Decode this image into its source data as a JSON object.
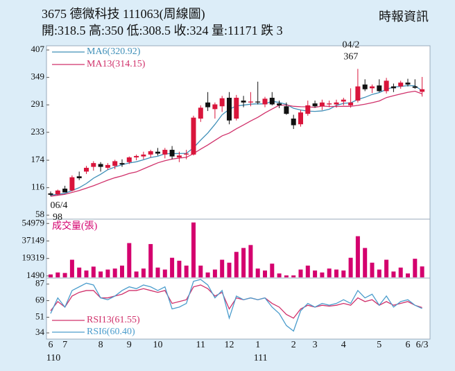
{
  "header": {
    "title": "3675  德微科技 111063(周線圖)",
    "quote": "開:318.5 高:350 低:308.5 收:324 量:11171 跌 3",
    "source": "時報資訊"
  },
  "chart_data": [
    {
      "type": "candlestick",
      "up_color": "#d9153b",
      "down_color": "#111111",
      "categories": [
        "6",
        null,
        "7",
        null,
        null,
        null,
        null,
        "8",
        null,
        null,
        null,
        "9",
        null,
        null,
        null,
        "10",
        null,
        null,
        null,
        null,
        null,
        "11",
        null,
        null,
        null,
        "12",
        null,
        null,
        null,
        "1",
        null,
        null,
        null,
        null,
        "2",
        null,
        null,
        "3",
        null,
        null,
        null,
        "4",
        null,
        null,
        null,
        null,
        "5",
        null,
        null,
        null,
        "6",
        null,
        "6/3"
      ],
      "year_categories": [
        "110",
        null,
        null,
        null,
        null,
        null,
        null,
        null,
        null,
        null,
        null,
        null,
        null,
        null,
        null,
        null,
        null,
        null,
        null,
        null,
        null,
        null,
        null,
        null,
        null,
        null,
        null,
        null,
        null,
        "111",
        null,
        null,
        null,
        null,
        null,
        null,
        null,
        null,
        null,
        null,
        null,
        null,
        null,
        null,
        null,
        null,
        null,
        null,
        null,
        null,
        null,
        null,
        null
      ],
      "open": [
        104,
        102,
        114,
        110,
        140,
        150,
        160,
        166,
        158,
        162,
        168,
        170,
        180,
        182,
        186,
        192,
        186,
        196,
        180,
        186,
        186,
        262,
        296,
        282,
        288,
        306,
        262,
        300,
        296,
        298,
        292,
        306,
        294,
        288,
        262,
        250,
        272,
        294,
        288,
        292,
        292,
        298,
        290,
        300,
        334,
        326,
        332,
        320,
        330,
        330,
        338,
        330,
        318.5
      ],
      "high": [
        108,
        112,
        120,
        142,
        150,
        162,
        172,
        170,
        168,
        175,
        176,
        182,
        186,
        192,
        196,
        200,
        200,
        204,
        192,
        196,
        268,
        290,
        318,
        296,
        310,
        318,
        312,
        310,
        318,
        340,
        308,
        318,
        300,
        296,
        270,
        280,
        300,
        300,
        302,
        300,
        302,
        306,
        326,
        367,
        345,
        334,
        345,
        348,
        336,
        342,
        346,
        345,
        350
      ],
      "low": [
        98,
        100,
        108,
        108,
        132,
        145,
        152,
        150,
        154,
        155,
        160,
        166,
        174,
        176,
        180,
        184,
        178,
        176,
        170,
        176,
        184,
        255,
        278,
        262,
        276,
        250,
        258,
        286,
        288,
        292,
        286,
        290,
        284,
        270,
        240,
        245,
        268,
        285,
        280,
        286,
        285,
        290,
        285,
        296,
        320,
        316,
        318,
        315,
        318,
        325,
        330,
        325,
        308.5
      ],
      "close": [
        101,
        110,
        106,
        138,
        136,
        158,
        168,
        160,
        164,
        172,
        165,
        180,
        183,
        186,
        193,
        188,
        196,
        182,
        184,
        188,
        264,
        285,
        286,
        292,
        305,
        258,
        306,
        296,
        298,
        296,
        304,
        292,
        290,
        272,
        248,
        275,
        290,
        288,
        296,
        294,
        296,
        302,
        296,
        330,
        324,
        330,
        320,
        342,
        326,
        338,
        334,
        327,
        324
      ],
      "series": [
        {
          "name": "MA6(320.92)",
          "color": "#3f8fb8",
          "values": [
            100,
            102,
            104,
            110,
            116,
            124.8,
            136,
            144.3,
            154,
            159.7,
            164.5,
            168.2,
            170.7,
            175,
            179.8,
            182.5,
            187.7,
            188,
            188.2,
            188.5,
            200.3,
            216.5,
            231.5,
            249.8,
            270,
            281.7,
            288.7,
            290.5,
            292.5,
            293.2,
            293,
            298.7,
            296,
            292,
            283.7,
            280.2,
            277.8,
            277.2,
            278.2,
            281.8,
            289.8,
            294.3,
            295.3,
            302.3,
            307,
            313,
            317,
            323.7,
            328.7,
            330,
            331.7,
            331.2,
            320.92
          ]
        },
        {
          "name": "MA13(314.15)",
          "color": "#d0306a",
          "values": [
            98,
            100,
            102,
            106,
            110,
            115,
            120,
            126,
            132,
            137,
            141,
            146,
            149.3,
            155.8,
            162.2,
            168.5,
            173,
            176.5,
            178.5,
            180.1,
            188.1,
            197.4,
            206.2,
            215.9,
            225.5,
            231.3,
            240.5,
            248.5,
            256.9,
            264.6,
            274,
            282.3,
            290.2,
            290.8,
            287.9,
            287.1,
            286.9,
            285.6,
            288.5,
            287.6,
            287.6,
            287.9,
            287.9,
            289.9,
            292.4,
            295.5,
            299.2,
            306.4,
            310.3,
            314,
            317.5,
            319.9,
            314.15
          ]
        }
      ],
      "high_label": {
        "date": "04/2",
        "value": 367
      },
      "low_label": {
        "date": "06/4",
        "value": 98
      },
      "ylim": [
        51,
        410
      ],
      "yticks": [
        407,
        349,
        291,
        233,
        174,
        116,
        58
      ]
    },
    {
      "type": "bar",
      "title": "成交量(張)",
      "color": "#d4006e",
      "values": [
        3000,
        5000,
        4500,
        18000,
        10000,
        7000,
        11000,
        6000,
        8000,
        9000,
        12000,
        35000,
        6000,
        9000,
        34000,
        10000,
        8000,
        20000,
        17000,
        12000,
        56000,
        12000,
        5000,
        8000,
        18000,
        15000,
        26000,
        30000,
        33000,
        9000,
        7000,
        14000,
        4000,
        2000,
        2000,
        8000,
        12000,
        7000,
        5000,
        9000,
        8000,
        7000,
        20000,
        42000,
        30000,
        15000,
        8000,
        18000,
        6000,
        10000,
        4000,
        19000,
        11171
      ],
      "ylim": [
        0,
        58000
      ],
      "yticks": [
        54979,
        37149,
        19319,
        1490
      ]
    },
    {
      "type": "line",
      "series": [
        {
          "name": "RSI13(61.55)",
          "color": "#d0306a",
          "values": [
            58,
            68,
            62,
            74,
            78,
            80,
            80,
            72,
            72,
            74,
            76,
            80,
            80,
            82,
            80,
            78,
            80,
            66,
            68,
            70,
            84,
            86,
            82,
            74,
            78,
            60,
            72,
            70,
            72,
            70,
            72,
            66,
            62,
            54,
            50,
            60,
            64,
            62,
            64,
            63,
            64,
            66,
            64,
            72,
            68,
            70,
            64,
            68,
            64,
            66,
            68,
            64,
            61.55
          ]
        },
        {
          "name": "RSI6(60.40)",
          "color": "#4a9ccc",
          "values": [
            55,
            72,
            62,
            80,
            84,
            88,
            86,
            72,
            70,
            74,
            80,
            84,
            82,
            86,
            84,
            80,
            84,
            60,
            62,
            66,
            90,
            92,
            86,
            72,
            80,
            50,
            74,
            70,
            72,
            70,
            72,
            62,
            55,
            42,
            36,
            58,
            66,
            62,
            66,
            64,
            66,
            70,
            66,
            80,
            72,
            76,
            64,
            74,
            62,
            68,
            70,
            64,
            60.4
          ]
        }
      ],
      "ylim": [
        28,
        92
      ],
      "yticks": [
        87,
        69,
        51,
        34
      ]
    }
  ]
}
